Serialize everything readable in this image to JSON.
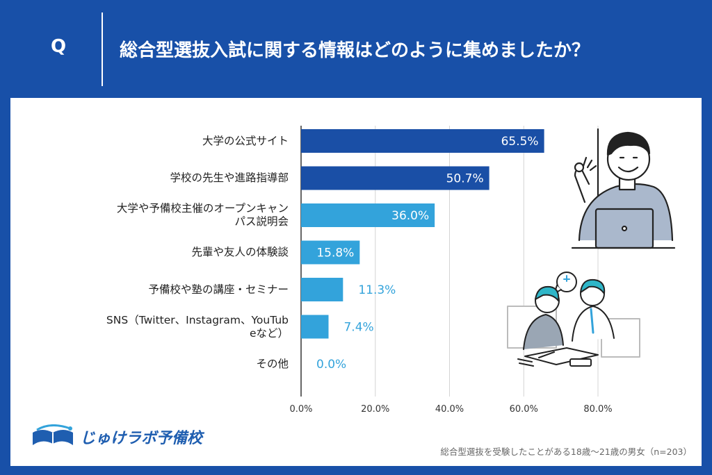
{
  "header": {
    "q_mark": "Q",
    "question": "総合型選抜入試に関する情報はどのように集めましたか？"
  },
  "colors": {
    "header_bg": "#1850a8",
    "bar_dark": "#1a4fa6",
    "bar_light": "#33a3db",
    "label_light": "#33a3db"
  },
  "chart_data": {
    "type": "bar",
    "orientation": "horizontal",
    "categories": [
      "大学の公式サイト",
      "学校の先生や進路指導部",
      "大学や予備校主催のオープンキャンパス説明会",
      "先輩や友人の体験談",
      "予備校や塾の講座・セミナー",
      "SNS（Twitter、Instagram、YouTubeなど）",
      "その他"
    ],
    "category_label_lines": [
      [
        "大学の公式サイト"
      ],
      [
        "学校の先生や進路指導部"
      ],
      [
        "大学や予備校主催のオープンキャン",
        "パス説明会"
      ],
      [
        "先輩や友人の体験談"
      ],
      [
        "予備校や塾の講座・セミナー"
      ],
      [
        "SNS（Twitter、Instagram、YouTub",
        "eなど）"
      ],
      [
        "その他"
      ]
    ],
    "values": [
      65.5,
      50.7,
      36.0,
      15.8,
      11.3,
      7.4,
      0.0
    ],
    "value_labels": [
      "65.5%",
      "50.7%",
      "36.0%",
      "15.8%",
      "11.3%",
      "7.4%",
      "0.0%"
    ],
    "bar_tone": [
      "dark",
      "dark",
      "light",
      "light",
      "light",
      "light",
      "light"
    ],
    "label_inside": [
      true,
      true,
      true,
      true,
      false,
      false,
      false
    ],
    "xlim": [
      0,
      80
    ],
    "xticks": [
      0,
      20,
      40,
      60,
      80
    ],
    "xtick_labels": [
      "0.0%",
      "20.0%",
      "40.0%",
      "60.0%",
      "80.0%"
    ],
    "grid": true
  },
  "logo": {
    "name": "じゅけラボ予備校"
  },
  "footnote": "総合型選抜を受験したことがある18歳～21歳の男女（n=203）"
}
